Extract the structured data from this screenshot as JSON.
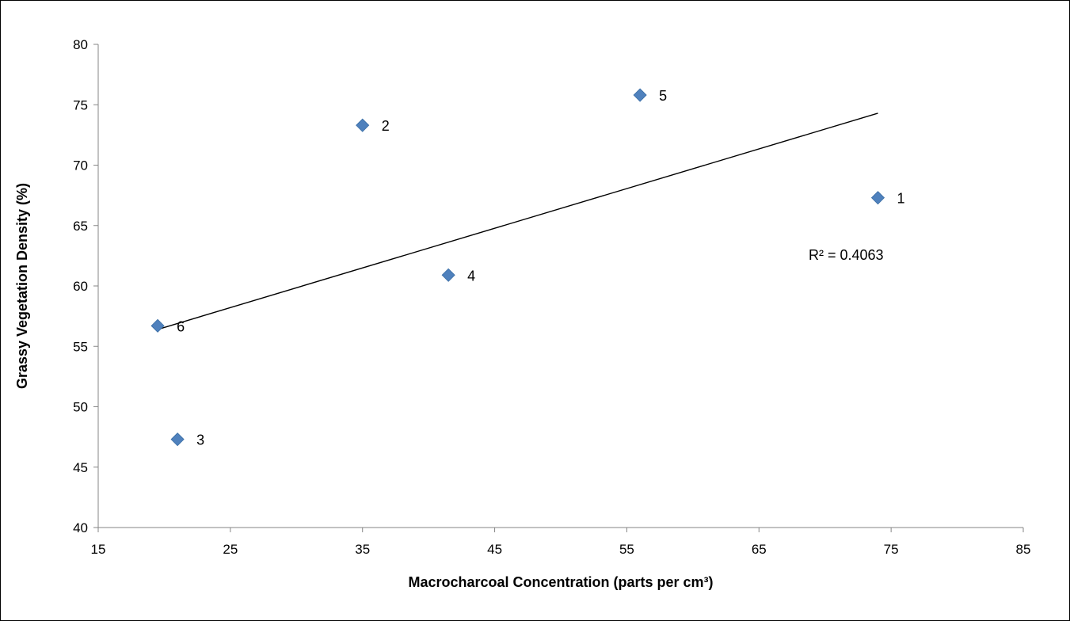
{
  "chart_data": {
    "type": "scatter",
    "xlabel": "Macrocharcoal Concentration (parts per cm³)",
    "ylabel": "Grassy Vegetation Density (%)",
    "xlim": [
      15,
      85
    ],
    "ylim": [
      40,
      80
    ],
    "x_ticks": [
      15,
      25,
      35,
      45,
      55,
      65,
      75,
      85
    ],
    "y_ticks": [
      40,
      45,
      50,
      55,
      60,
      65,
      70,
      75,
      80
    ],
    "grid": false,
    "marker": "diamond",
    "marker_color": "#4f81bd",
    "points": [
      {
        "label": "1",
        "x": 74,
        "y": 67.3
      },
      {
        "label": "2",
        "x": 35,
        "y": 73.3
      },
      {
        "label": "3",
        "x": 21,
        "y": 47.3
      },
      {
        "label": "4",
        "x": 41.5,
        "y": 60.9
      },
      {
        "label": "5",
        "x": 56,
        "y": 75.8
      },
      {
        "label": "6",
        "x": 19.5,
        "y": 56.7
      }
    ],
    "trendline": {
      "type": "linear",
      "x_start": 19.5,
      "y_start": 56.4,
      "x_end": 74,
      "y_end": 74.3,
      "color": "#000000",
      "r_squared_text": "R² = 0.4063"
    }
  }
}
